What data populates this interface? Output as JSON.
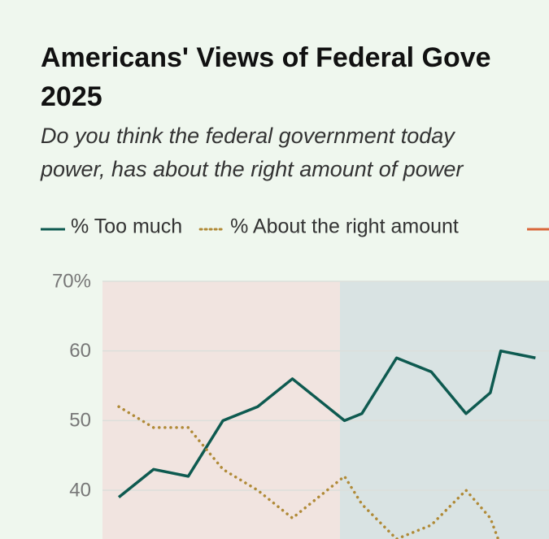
{
  "chart_data": {
    "type": "line",
    "title_lines": [
      "Americans' Views of Federal Gove",
      "2025"
    ],
    "subtitle_lines": [
      "Do you think the federal government today",
      "power, has about the right amount of power"
    ],
    "x": [
      2002,
      2003,
      2004,
      2005,
      2006,
      2007,
      2008.5,
      2009,
      2010,
      2011,
      2012,
      2012.7,
      2013,
      2014
    ],
    "xlim": [
      2001.53,
      2014.39
    ],
    "series": [
      {
        "name": "% Too much",
        "color": "#0e5a50",
        "dash": "solid",
        "values": [
          39,
          43,
          42,
          50,
          52,
          56,
          50,
          51,
          59,
          57,
          51,
          54,
          60,
          59
        ]
      },
      {
        "name": "% About the right amount",
        "color": "#b08a37",
        "dash": "dotted",
        "values": [
          52,
          49,
          49,
          43,
          40,
          36,
          42,
          38,
          33,
          35,
          40,
          36,
          32,
          null
        ]
      }
    ],
    "ylim": [
      33,
      70
    ],
    "yticks": [
      {
        "value": 70,
        "label": "70%"
      },
      60,
      50,
      40
    ],
    "grid": true
  }
}
